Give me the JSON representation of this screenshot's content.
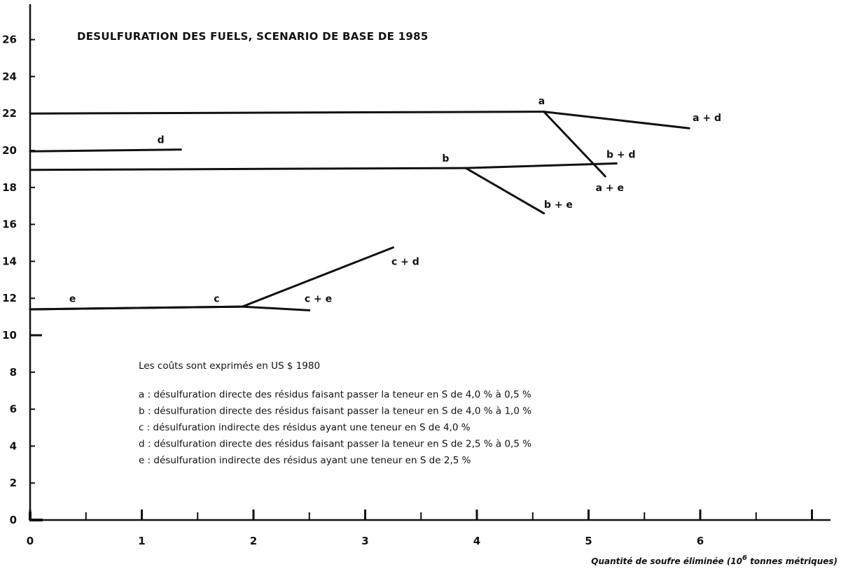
{
  "chart_data": {
    "type": "line",
    "title": "DESULFURATION DES FUELS, SCENARIO DE BASE DE 1985",
    "xlabel": "Quantité de soufre éliminée (10",
    "xlabel_exponent": "6",
    "xlabel_suffix": " tonnes métriques)",
    "ylabel": "",
    "xlim": [
      0,
      7.2
    ],
    "ylim": [
      0,
      27
    ],
    "x_ticks": [
      0,
      1,
      2,
      3,
      4,
      5,
      6
    ],
    "y_ticks": [
      0,
      2,
      4,
      6,
      8,
      10,
      12,
      14,
      16,
      18,
      20,
      22,
      24,
      26
    ],
    "grid": false,
    "legend": "none",
    "series": [
      {
        "name": "a",
        "points": [
          [
            0,
            22.0
          ],
          [
            4.6,
            22.1
          ]
        ]
      },
      {
        "name": "a + d",
        "points": [
          [
            4.6,
            22.1
          ],
          [
            5.9,
            21.2
          ]
        ]
      },
      {
        "name": "a + e",
        "points": [
          [
            4.6,
            22.1
          ],
          [
            5.15,
            18.6
          ]
        ]
      },
      {
        "name": "d",
        "points": [
          [
            0,
            19.95
          ],
          [
            1.35,
            20.05
          ]
        ]
      },
      {
        "name": "b",
        "points": [
          [
            0,
            18.95
          ],
          [
            3.9,
            19.05
          ]
        ]
      },
      {
        "name": "b + d",
        "points": [
          [
            3.9,
            19.05
          ],
          [
            5.25,
            19.3
          ]
        ]
      },
      {
        "name": "b + e",
        "points": [
          [
            3.9,
            19.05
          ],
          [
            4.6,
            16.6
          ]
        ]
      },
      {
        "name": "e",
        "points": [
          [
            0,
            11.4
          ],
          [
            1.9,
            11.55
          ]
        ]
      },
      {
        "name": "c",
        "points": [
          [
            0,
            11.4
          ],
          [
            1.9,
            11.55
          ]
        ]
      },
      {
        "name": "c + d",
        "points": [
          [
            1.9,
            11.55
          ],
          [
            3.25,
            14.75
          ]
        ]
      },
      {
        "name": "c + e",
        "points": [
          [
            1.9,
            11.55
          ],
          [
            2.5,
            11.35
          ]
        ]
      }
    ],
    "series_labels": [
      {
        "text": "a",
        "x": 4.58,
        "y": 22.5
      },
      {
        "text": "a + d",
        "x": 6.06,
        "y": 21.6
      },
      {
        "text": "a + e",
        "x": 5.19,
        "y": 17.8
      },
      {
        "text": "d",
        "x": 1.17,
        "y": 20.4
      },
      {
        "text": "b",
        "x": 3.72,
        "y": 19.4
      },
      {
        "text": "b + d",
        "x": 5.29,
        "y": 19.6
      },
      {
        "text": "b + e",
        "x": 4.73,
        "y": 16.9
      },
      {
        "text": "e",
        "x": 0.38,
        "y": 11.8
      },
      {
        "text": "c",
        "x": 1.67,
        "y": 11.8
      },
      {
        "text": "c + d",
        "x": 3.36,
        "y": 13.8
      },
      {
        "text": "c + e",
        "x": 2.58,
        "y": 11.8
      }
    ],
    "annotations": {
      "cost_note": "Les coûts sont exprimés en US $ 1980",
      "legend_lines": [
        "a :  désulfuration directe des résidus faisant passer la teneur en S de 4,0 % à 0,5 %",
        "b :  désulfuration directe des résidus faisant passer la teneur en S de 4,0 % à 1,0 %",
        "c :  désulfuration indirecte des résidus ayant une teneur en S de 4,0 %",
        "d :  désulfuration directe des résidus faisant passer la teneur en S de 2,5 % à 0,5 %",
        "e :  désulfuration indirecte des résidus ayant une teneur en S de 2,5 %"
      ]
    }
  }
}
